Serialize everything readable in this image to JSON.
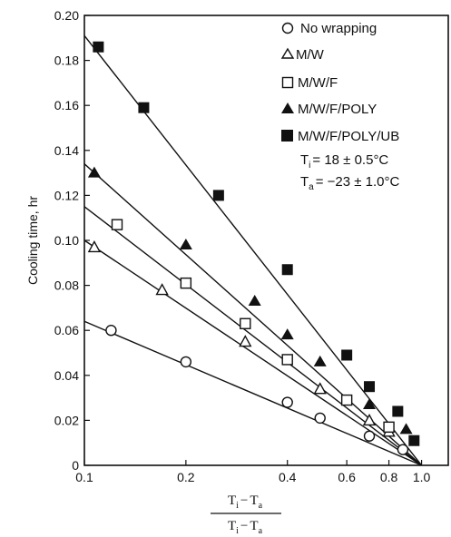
{
  "chart_data": {
    "type": "line",
    "title": "",
    "xlabel_numerator": {
      "a": "T",
      "a_sub": "i",
      "op": "−",
      "b": "T",
      "b_sub": "a"
    },
    "xlabel_denominator": {
      "a": "T",
      "a_sub": "i",
      "op": "−",
      "b": "T",
      "b_sub": "a"
    },
    "ylabel": "Cooling time, hr",
    "xscale": "log",
    "xlim": [
      0.1,
      1.2
    ],
    "ylim": [
      0,
      0.2
    ],
    "x_ticks": [
      0.1,
      0.2,
      0.4,
      0.6,
      0.8,
      1.0
    ],
    "x_tick_labels": [
      "0.1",
      "0.2",
      "0.4",
      "0.6",
      "0.8",
      "1.0"
    ],
    "y_ticks": [
      0,
      0.02,
      0.04,
      0.06,
      0.08,
      0.1,
      0.12,
      0.14,
      0.16,
      0.18,
      0.2
    ],
    "y_tick_labels": [
      "0",
      "0.02",
      "0.04",
      "0.06",
      "0.08",
      "0.10",
      "0.12",
      "0.14",
      "0.16",
      "0.18",
      "0.20"
    ],
    "grid": false,
    "legend_position": "top-right",
    "series": [
      {
        "name": "No wrapping",
        "marker": "circle-open",
        "points": [
          [
            0.12,
            0.06
          ],
          [
            0.2,
            0.046
          ],
          [
            0.4,
            0.028
          ],
          [
            0.5,
            0.021
          ],
          [
            0.7,
            0.013
          ],
          [
            0.88,
            0.007
          ]
        ],
        "fit": [
          [
            0.1,
            0.064
          ],
          [
            1.0,
            0.0
          ]
        ]
      },
      {
        "name": "M/W",
        "marker": "triangle-open",
        "points": [
          [
            0.107,
            0.097
          ],
          [
            0.17,
            0.078
          ],
          [
            0.3,
            0.055
          ],
          [
            0.5,
            0.034
          ],
          [
            0.7,
            0.02
          ],
          [
            0.8,
            0.015
          ]
        ],
        "fit": [
          [
            0.1,
            0.1
          ],
          [
            1.0,
            0.0
          ]
        ]
      },
      {
        "name": "M/W/F",
        "marker": "square-open",
        "points": [
          [
            0.125,
            0.107
          ],
          [
            0.2,
            0.081
          ],
          [
            0.3,
            0.063
          ],
          [
            0.4,
            0.047
          ],
          [
            0.6,
            0.029
          ],
          [
            0.8,
            0.017
          ]
        ],
        "fit": [
          [
            0.1,
            0.115
          ],
          [
            1.0,
            0.0
          ]
        ]
      },
      {
        "name": "M/W/F/POLY",
        "marker": "triangle-filled",
        "points": [
          [
            0.107,
            0.13
          ],
          [
            0.2,
            0.098
          ],
          [
            0.32,
            0.073
          ],
          [
            0.4,
            0.058
          ],
          [
            0.5,
            0.046
          ],
          [
            0.7,
            0.027
          ],
          [
            0.9,
            0.016
          ]
        ],
        "fit": [
          [
            0.1,
            0.134
          ],
          [
            1.0,
            0.0
          ]
        ]
      },
      {
        "name": "M/W/F/POLY/UB",
        "marker": "square-filled",
        "points": [
          [
            0.11,
            0.186
          ],
          [
            0.15,
            0.159
          ],
          [
            0.25,
            0.12
          ],
          [
            0.4,
            0.087
          ],
          [
            0.6,
            0.049
          ],
          [
            0.7,
            0.035
          ],
          [
            0.85,
            0.024
          ],
          [
            0.95,
            0.011
          ]
        ],
        "fit": [
          [
            0.1,
            0.191
          ],
          [
            1.0,
            0.0
          ]
        ]
      }
    ],
    "annotations": [
      {
        "lhs": "T",
        "lhs_sub": "i",
        "rhs": "= 18 ± 0.5°C"
      },
      {
        "lhs": "T",
        "lhs_sub": "a",
        "rhs": "= −23 ± 1.0°C"
      }
    ]
  }
}
